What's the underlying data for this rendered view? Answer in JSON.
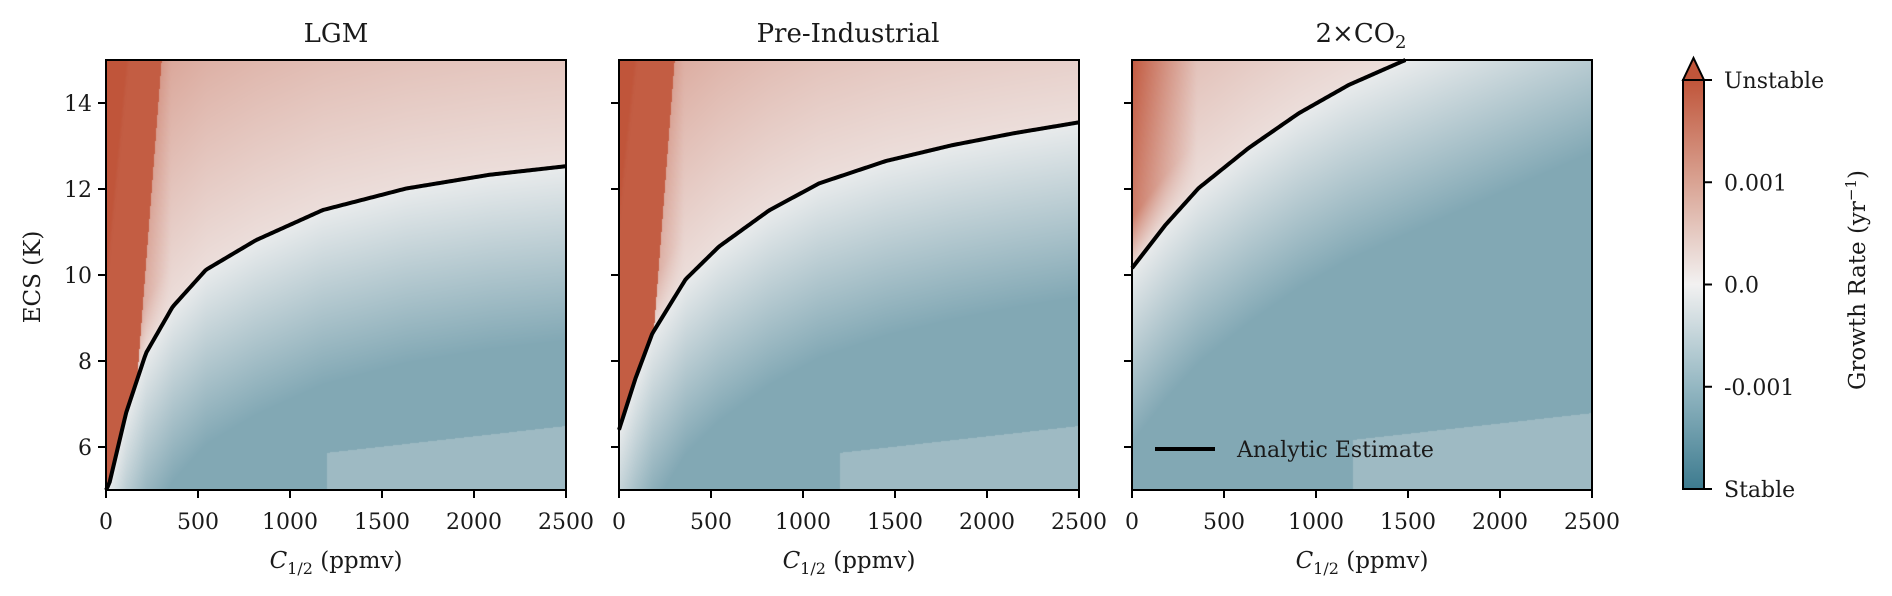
{
  "chart_data": {
    "type": "heatmap",
    "shared_ylabel": "ECS (K)",
    "xlabel_main": "C",
    "xlabel_sub": "1/2",
    "xlabel_unit": "(ppmv)",
    "xlim": [
      0,
      2500
    ],
    "ylim": [
      5,
      15
    ],
    "xticks": [
      0,
      500,
      1000,
      1500,
      2000,
      2500
    ],
    "yticks": [
      6,
      8,
      10,
      12,
      14
    ],
    "grid": false,
    "legend": {
      "label": "Analytic Estimate",
      "location": "lower-left (third panel)"
    },
    "panels": [
      {
        "title": "LGM",
        "analytic_estimate": {
          "x": [
            0,
            18,
            109,
            217,
            362,
            543,
            815,
            1178,
            1630,
            2083,
            2500
          ],
          "y": [
            5.0,
            5.15,
            6.79,
            8.18,
            9.26,
            10.12,
            10.81,
            11.51,
            12.01,
            12.33,
            12.53
          ]
        }
      },
      {
        "title": "Pre-Industrial",
        "analytic_estimate": {
          "x": [
            0,
            90,
            181,
            362,
            543,
            815,
            1087,
            1450,
            1812,
            2150,
            2500
          ],
          "y": [
            6.4,
            7.6,
            8.64,
            9.9,
            10.66,
            11.5,
            12.13,
            12.65,
            13.02,
            13.3,
            13.55
          ]
        }
      },
      {
        "title_main": "2×CO",
        "title_sub": "2",
        "analytic_estimate": {
          "x": [
            0,
            181,
            362,
            633,
            906,
            1178,
            1486
          ],
          "y": [
            10.16,
            11.16,
            12.02,
            12.95,
            13.76,
            14.42,
            15.0
          ]
        }
      }
    ],
    "colorbar": {
      "label": "Growth Rate (yr",
      "label_sup": "−1",
      "label_close": ")",
      "range": [
        -0.002,
        0.002
      ],
      "extend": "max",
      "ticks": [
        {
          "value": 0.002,
          "label": "Unstable"
        },
        {
          "value": 0.001,
          "label": "0.001"
        },
        {
          "value": 0.0,
          "label": "0.0"
        },
        {
          "value": -0.001,
          "label": "-0.001"
        },
        {
          "value": -0.002,
          "label": "Stable"
        }
      ],
      "colors": {
        "stable": "#3d7b8f",
        "neutral": "#f2f1f1",
        "unstable": "#c0553a"
      }
    }
  }
}
